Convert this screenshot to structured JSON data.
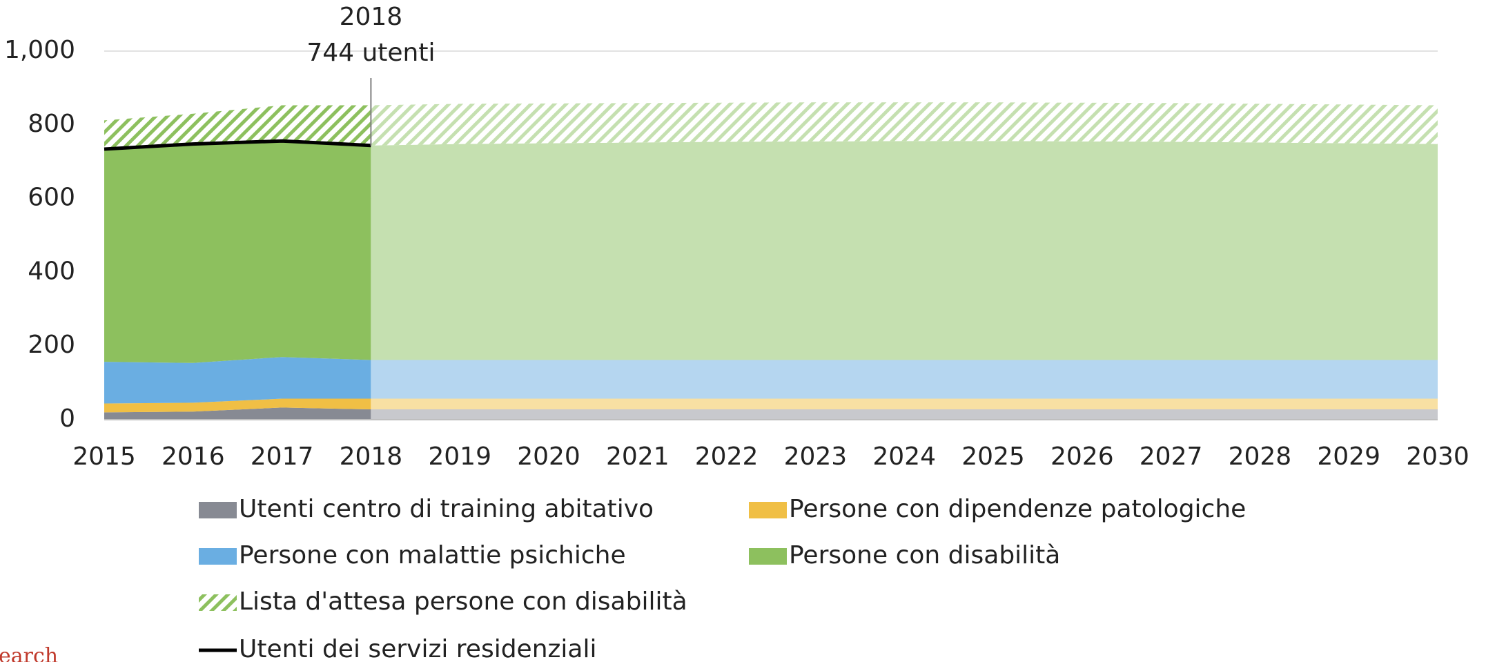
{
  "chart_data": {
    "type": "area",
    "stacked": true,
    "x": [
      2015,
      2016,
      2017,
      2018,
      2019,
      2020,
      2021,
      2022,
      2023,
      2024,
      2025,
      2026,
      2027,
      2028,
      2029,
      2030
    ],
    "xlim": [
      2015,
      2030
    ],
    "xticks": [
      2015,
      2016,
      2017,
      2018,
      2019,
      2020,
      2021,
      2022,
      2023,
      2024,
      2025,
      2026,
      2027,
      2028,
      2029,
      2030
    ],
    "ylim": [
      0,
      1000
    ],
    "yticks": [
      0,
      200,
      400,
      600,
      800,
      {
        "value": 1000,
        "label": "1,000"
      }
    ],
    "grid": true,
    "projection_from": 2018,
    "series": [
      {
        "name": "Utenti centro di training abitativo",
        "color": "#878a93",
        "projection_color": "#c8c9cd",
        "values": [
          20,
          22,
          33,
          28,
          28,
          28,
          28,
          28,
          28,
          28,
          28,
          28,
          28,
          28,
          28,
          28
        ]
      },
      {
        "name": "Persone con dipendenze patologiche",
        "color": "#f0bf45",
        "projection_color": "#f8e0a3",
        "values": [
          24,
          24,
          24,
          29,
          29,
          29,
          29,
          29,
          29,
          29,
          29,
          29,
          29,
          29,
          29,
          29
        ]
      },
      {
        "name": "Persone con malattie psichiche",
        "color": "#6aaee2",
        "projection_color": "#b5d6f0",
        "values": [
          113,
          108,
          113,
          105,
          105,
          105,
          105,
          105,
          105,
          105,
          105,
          105,
          105,
          105,
          105,
          105
        ]
      },
      {
        "name": "Persone con disabilità",
        "color": "#8dc05e",
        "projection_color": "#c5e0b0",
        "values": [
          577,
          594,
          586,
          582,
          586,
          588,
          590,
          592,
          593,
          594,
          594,
          593,
          592,
          590,
          588,
          586
        ]
      },
      {
        "name": "Lista d'attesa persone con disabilità",
        "color": "#8dc05e",
        "projection_color": "#c5e0b0",
        "hatched": true,
        "values": [
          78,
          82,
          97,
          109,
          109,
          108,
          107,
          106,
          106,
          105,
          105,
          105,
          105,
          105,
          105,
          105
        ]
      },
      {
        "name": "Utenti dei servizi residenziali",
        "color": "#000000",
        "kind": "line",
        "values": [
          734,
          748,
          756,
          744,
          null,
          null,
          null,
          null,
          null,
          null,
          null,
          null,
          null,
          null,
          null,
          null
        ]
      }
    ],
    "annotation": {
      "x": 2018,
      "lines": [
        "2018",
        "744 utenti"
      ]
    },
    "source_fragment": "earch"
  }
}
